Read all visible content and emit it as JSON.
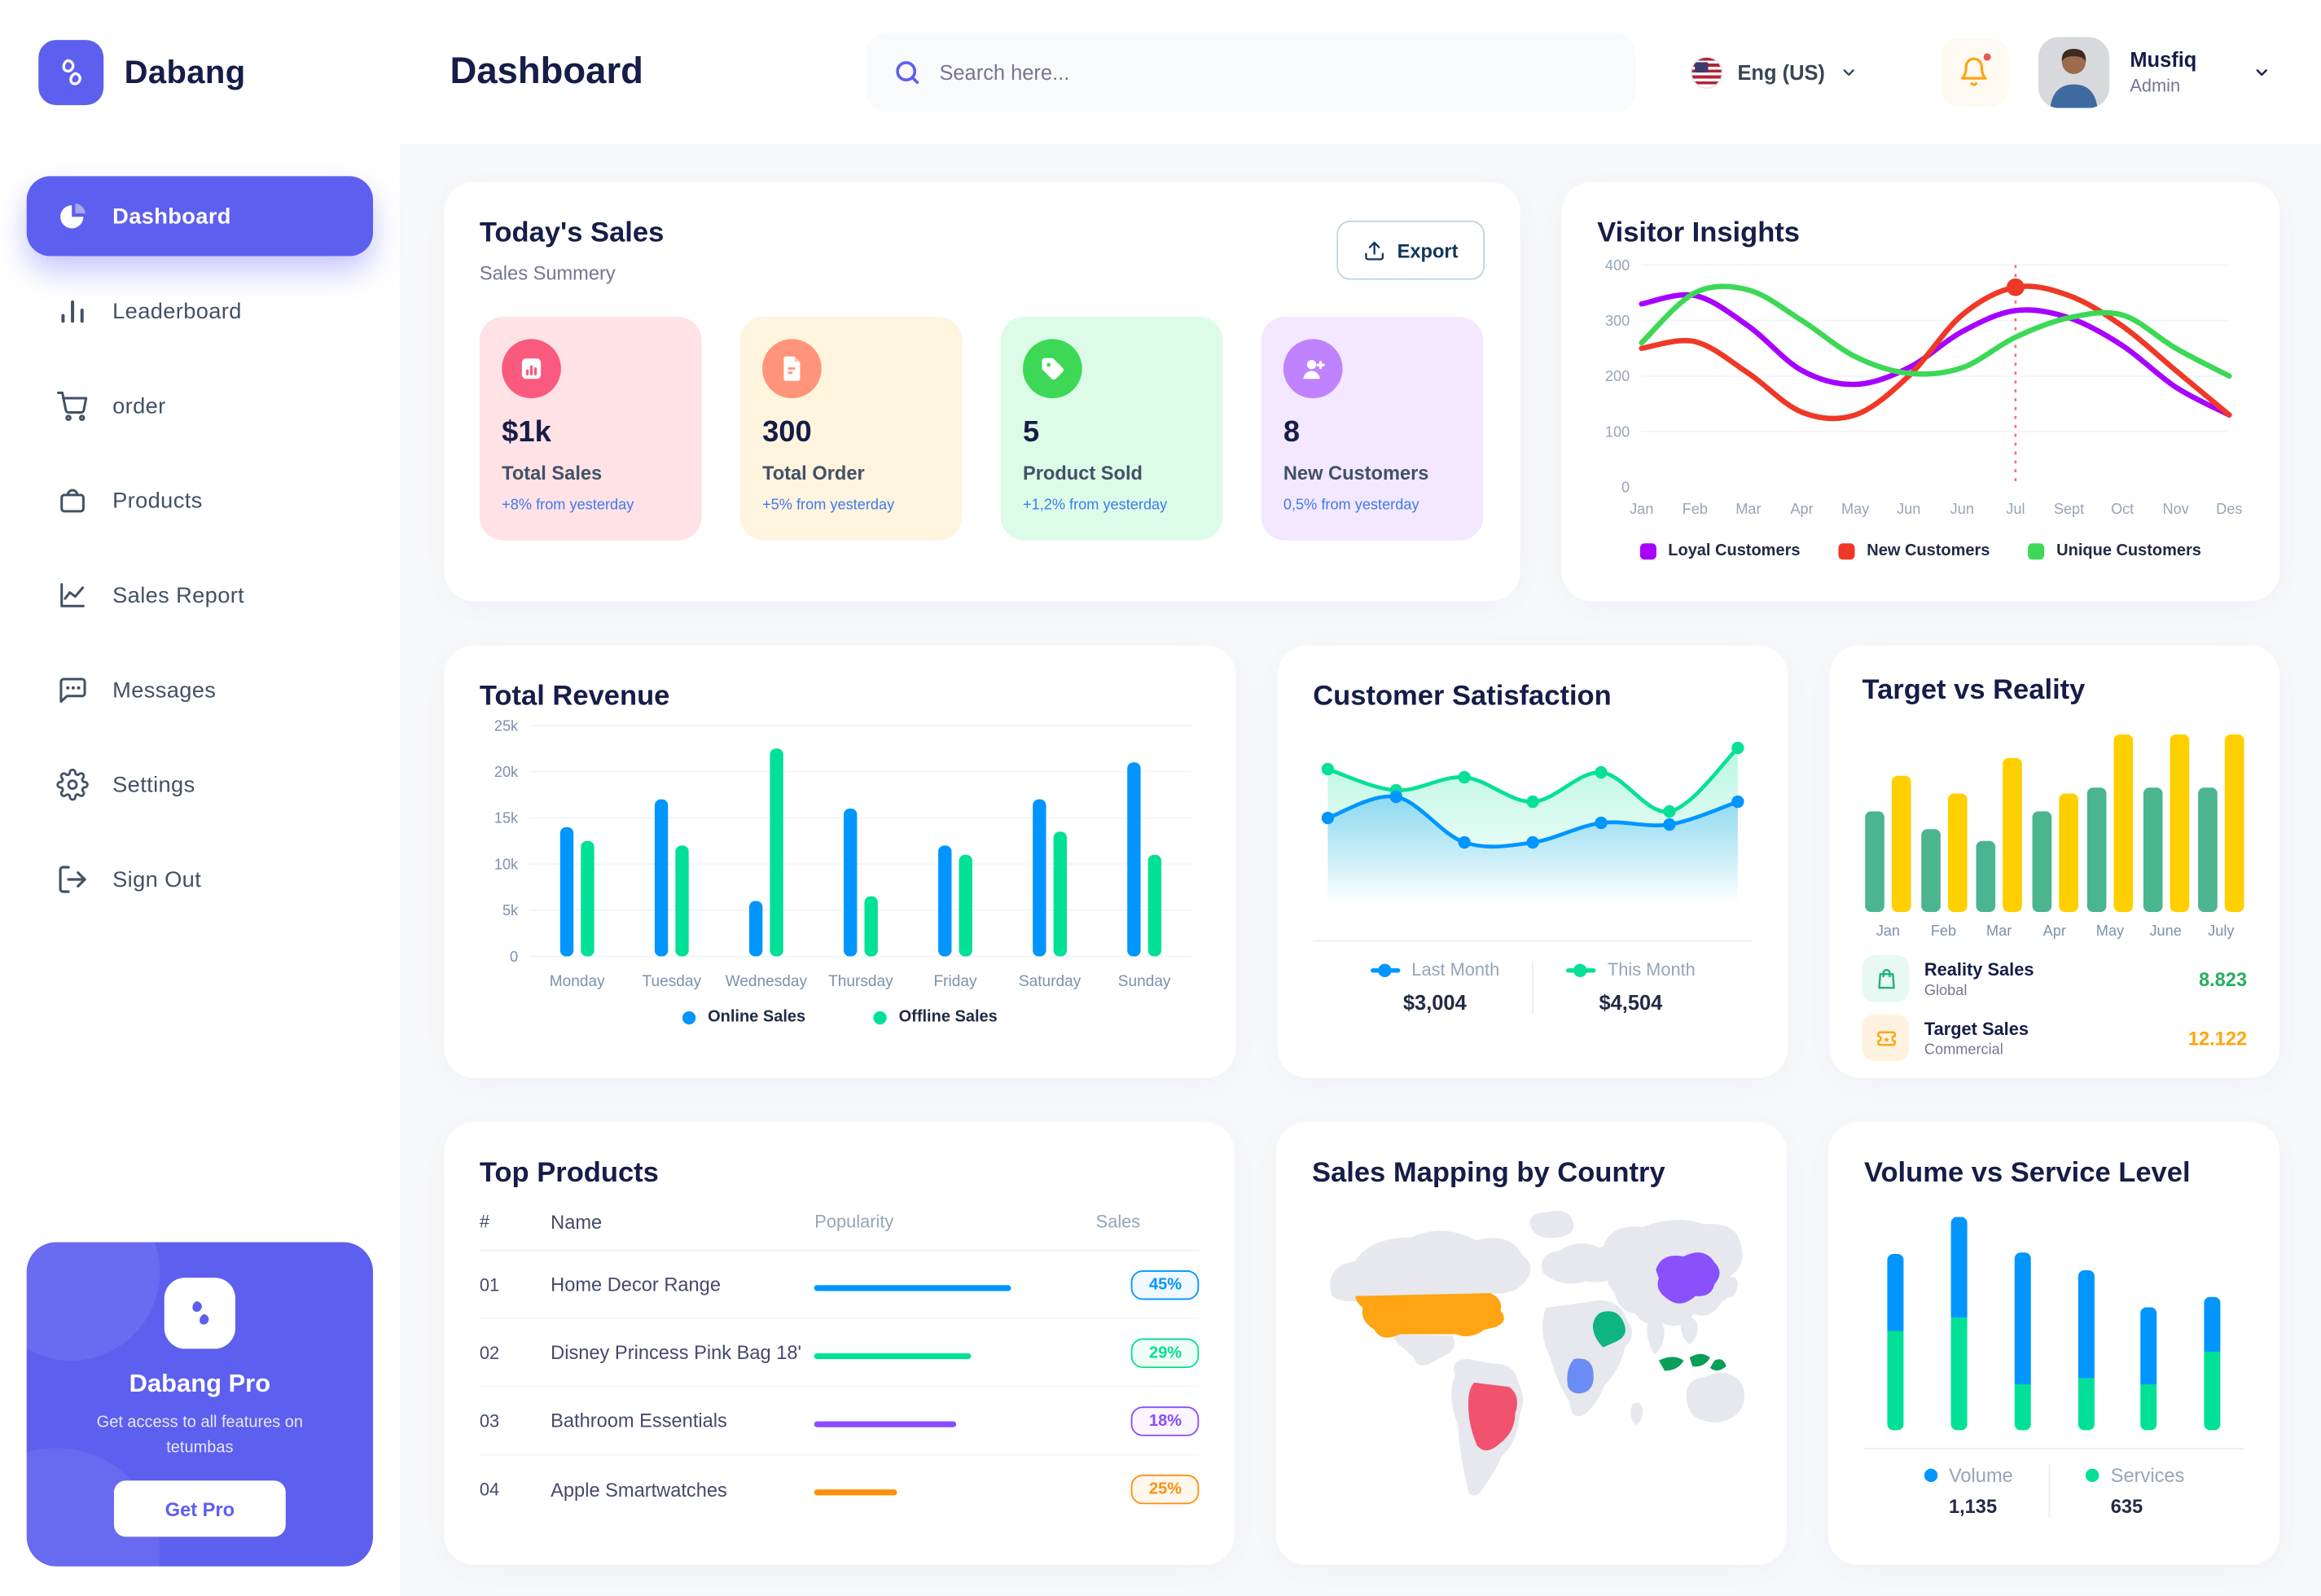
{
  "app": {
    "brand": "Dabang"
  },
  "header": {
    "title": "Dashboard",
    "search_placeholder": "Search here...",
    "language": "Eng (US)",
    "user": {
      "name": "Musfiq",
      "role": "Admin"
    }
  },
  "sidebar": {
    "items": [
      {
        "icon": "dashboard",
        "label": "Dashboard",
        "active": true
      },
      {
        "icon": "leaderboard",
        "label": "Leaderboard",
        "active": false
      },
      {
        "icon": "order",
        "label": "order",
        "active": false
      },
      {
        "icon": "products",
        "label": "Products",
        "active": false
      },
      {
        "icon": "sales",
        "label": "Sales Report",
        "active": false
      },
      {
        "icon": "messages",
        "label": "Messages",
        "active": false
      },
      {
        "icon": "settings",
        "label": "Settings",
        "active": false
      },
      {
        "icon": "signout",
        "label": "Sign Out",
        "active": false
      }
    ],
    "pro": {
      "title": "Dabang Pro",
      "desc": "Get access to all features on tetumbas",
      "button": "Get Pro"
    }
  },
  "today_sales": {
    "title": "Today's Sales",
    "subtitle": "Sales Summery",
    "export_label": "Export",
    "cards": [
      {
        "icon": "stat",
        "value": "$1k",
        "label": "Total Sales",
        "delta": "+8% from yesterday",
        "bg": "#FFE2E5",
        "icon_bg": "#FA5A7D"
      },
      {
        "icon": "file",
        "value": "300",
        "label": "Total Order",
        "delta": "+5% from yesterday",
        "bg": "#FFF4DE",
        "icon_bg": "#FF947A"
      },
      {
        "icon": "tag",
        "value": "5",
        "label": "Product Sold",
        "delta": "+1,2% from yesterday",
        "bg": "#DCFCE7",
        "icon_bg": "#3CD856"
      },
      {
        "icon": "user-plus",
        "value": "8",
        "label": "New Customers",
        "delta": "0,5% from yesterday",
        "bg": "#F3E8FF",
        "icon_bg": "#BF83FF"
      }
    ]
  },
  "top_products": {
    "title": "Top Products",
    "headers": [
      "#",
      "Name",
      "Popularity",
      "Sales"
    ],
    "rows": [
      {
        "num": "01",
        "name": "Home Decor Range",
        "popularity": 78,
        "color": "#0095FF",
        "track": "#CDE7FF",
        "badge": "45%",
        "badge_bg": "#F0F9FF"
      },
      {
        "num": "02",
        "name": "Disney Princess Pink Bag 18'",
        "popularity": 62,
        "color": "#00E096",
        "track": "#8CFAC7",
        "badge": "29%",
        "badge_bg": "#F0FDF4"
      },
      {
        "num": "03",
        "name": "Bathroom Essentials",
        "popularity": 56,
        "color": "#884DFF",
        "track": "#C5A8FF",
        "badge": "18%",
        "badge_bg": "#FAF5FF"
      },
      {
        "num": "04",
        "name": "Apple Smartwatches",
        "popularity": 33,
        "color": "#FF8F0D",
        "track": "#FFD5A4",
        "badge": "25%",
        "badge_bg": "#FFF7ED"
      }
    ]
  },
  "map": {
    "title": "Sales Mapping by Country",
    "countries": [
      {
        "name": "United States",
        "color": "#FFA412"
      },
      {
        "name": "Brazil",
        "color": "#F1536E"
      },
      {
        "name": "Saudi Arabia",
        "color": "#0FB580"
      },
      {
        "name": "Democratic Republic of Congo",
        "color": "#6C8CF5"
      },
      {
        "name": "China",
        "color": "#8950FC"
      },
      {
        "name": "Indonesia",
        "color": "#0B9E59"
      }
    ]
  },
  "chart_data": [
    {
      "id": "visitor_insights",
      "type": "line",
      "title": "Visitor Insights",
      "x": [
        "Jan",
        "Feb",
        "Mar",
        "Apr",
        "May",
        "Jun",
        "Jun",
        "Jul",
        "Sept",
        "Oct",
        "Nov",
        "Des"
      ],
      "ylim": [
        0,
        400
      ],
      "yticks": [
        0,
        100,
        200,
        300,
        400
      ],
      "grid": true,
      "legend_position": "bottom",
      "annotation": {
        "x_index": 7,
        "style": "dotted-vline",
        "color": "#F64E60"
      },
      "series": [
        {
          "name": "Loyal Customers",
          "color": "#A700FF",
          "values": [
            330,
            345,
            290,
            210,
            185,
            215,
            280,
            318,
            305,
            255,
            180,
            130
          ]
        },
        {
          "name": "New Customers",
          "color": "#EF3826",
          "values": [
            250,
            262,
            205,
            135,
            130,
            200,
            310,
            360,
            345,
            290,
            210,
            130
          ]
        },
        {
          "name": "Unique Customers",
          "color": "#3CD856",
          "values": [
            260,
            350,
            355,
            300,
            235,
            205,
            215,
            270,
            305,
            310,
            250,
            200
          ]
        }
      ]
    },
    {
      "id": "total_revenue",
      "type": "bar",
      "title": "Total Revenue",
      "categories": [
        "Monday",
        "Tuesday",
        "Wednesday",
        "Thursday",
        "Friday",
        "Saturday",
        "Sunday"
      ],
      "ylim": [
        0,
        25
      ],
      "yticks": [
        "0",
        "5k",
        "10k",
        "15k",
        "20k",
        "25k"
      ],
      "grid": true,
      "legend_position": "bottom",
      "series": [
        {
          "name": "Online Sales",
          "color": "#0095FF",
          "values": [
            14,
            17,
            6,
            16,
            12,
            17,
            21
          ]
        },
        {
          "name": "Offline Sales",
          "color": "#00E096",
          "values": [
            12.5,
            12,
            22.5,
            6.5,
            11,
            13.5,
            11
          ]
        }
      ]
    },
    {
      "id": "customer_satisfaction",
      "type": "area",
      "title": "Customer Satisfaction",
      "ylim": [
        0,
        100
      ],
      "grid": false,
      "legend_position": "bottom",
      "series": [
        {
          "name": "Last Month",
          "color": "#0095FF",
          "total": "$3,004",
          "values": [
            45,
            58,
            30,
            30,
            42,
            41,
            55
          ]
        },
        {
          "name": "This Month",
          "color": "#07E098",
          "total": "$4,504",
          "values": [
            75,
            62,
            70,
            55,
            73,
            49,
            88
          ]
        }
      ]
    },
    {
      "id": "target_vs_reality",
      "type": "bar",
      "title": "Target vs Reality",
      "categories": [
        "Jan",
        "Feb",
        "Mar",
        "Apr",
        "May",
        "June",
        "July"
      ],
      "ylim": [
        0,
        16
      ],
      "grid": false,
      "legend_position": "bottom",
      "series": [
        {
          "name": "Reality Sales",
          "color": "#4AB58E",
          "values": [
            8.5,
            7,
            6,
            8.5,
            10.5,
            10.5,
            10.5
          ]
        },
        {
          "name": "Target Sales",
          "color": "#FFCF00",
          "values": [
            11.5,
            10,
            13,
            10,
            15,
            15,
            15
          ]
        }
      ],
      "legend": [
        {
          "icon": "bag",
          "label": "Reality Sales",
          "sub": "Global",
          "value": "8.823",
          "value_color": "#27AE60",
          "tile_bg": "#E8F8F2",
          "icon_color": "#22B07D"
        },
        {
          "icon": "ticket",
          "label": "Target Sales",
          "sub": "Commercial",
          "value": "12.122",
          "value_color": "#FFA412",
          "tile_bg": "#FFF3E0",
          "icon_color": "#FFA412"
        }
      ]
    },
    {
      "id": "volume_vs_service",
      "type": "stacked-bar",
      "title": "Volume vs Service Level",
      "ylim": [
        0,
        30
      ],
      "grid": false,
      "legend_position": "bottom",
      "series": [
        {
          "name": "Volume",
          "color": "#0095FF",
          "total": "1,135",
          "values": [
            10.4,
            13.6,
            17.7,
            14.5,
            10.4,
            7.4
          ]
        },
        {
          "name": "Services",
          "color": "#00E096",
          "total": "635",
          "values": [
            13.5,
            15.3,
            6.3,
            7.1,
            6.2,
            10.6
          ]
        }
      ]
    }
  ]
}
